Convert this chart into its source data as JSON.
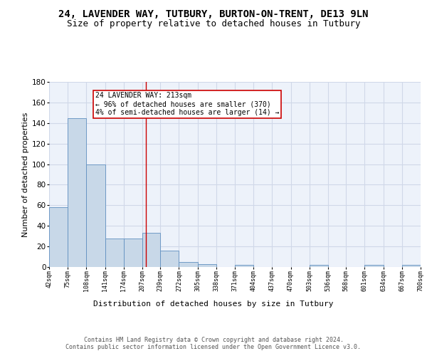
{
  "title1": "24, LAVENDER WAY, TUTBURY, BURTON-ON-TRENT, DE13 9LN",
  "title2": "Size of property relative to detached houses in Tutbury",
  "xlabel": "Distribution of detached houses by size in Tutbury",
  "ylabel": "Number of detached properties",
  "bin_edges": [
    42,
    75,
    108,
    141,
    174,
    207,
    239,
    272,
    305,
    338,
    371,
    404,
    437,
    470,
    503,
    536,
    568,
    601,
    634,
    667,
    700
  ],
  "bar_heights": [
    58,
    145,
    100,
    28,
    28,
    33,
    16,
    5,
    3,
    0,
    2,
    0,
    0,
    0,
    2,
    0,
    0,
    2,
    0,
    2
  ],
  "bar_color": "#c8d8e8",
  "bar_edge_color": "#6090c0",
  "grid_color": "#d0d8e8",
  "bg_color": "#edf2fa",
  "red_line_x": 213,
  "annotation_text": "24 LAVENDER WAY: 213sqm\n← 96% of detached houses are smaller (370)\n4% of semi-detached houses are larger (14) →",
  "annotation_box_color": "#ffffff",
  "annotation_border_color": "#cc0000",
  "footer": "Contains HM Land Registry data © Crown copyright and database right 2024.\nContains public sector information licensed under the Open Government Licence v3.0.",
  "ylim": [
    0,
    180
  ],
  "title1_fontsize": 10,
  "title2_fontsize": 9,
  "ylabel_fontsize": 8,
  "xlabel_fontsize": 8,
  "tick_labels": [
    "42sqm",
    "75sqm",
    "108sqm",
    "141sqm",
    "174sqm",
    "207sqm",
    "239sqm",
    "272sqm",
    "305sqm",
    "338sqm",
    "371sqm",
    "404sqm",
    "437sqm",
    "470sqm",
    "503sqm",
    "536sqm",
    "568sqm",
    "601sqm",
    "634sqm",
    "667sqm",
    "700sqm"
  ]
}
